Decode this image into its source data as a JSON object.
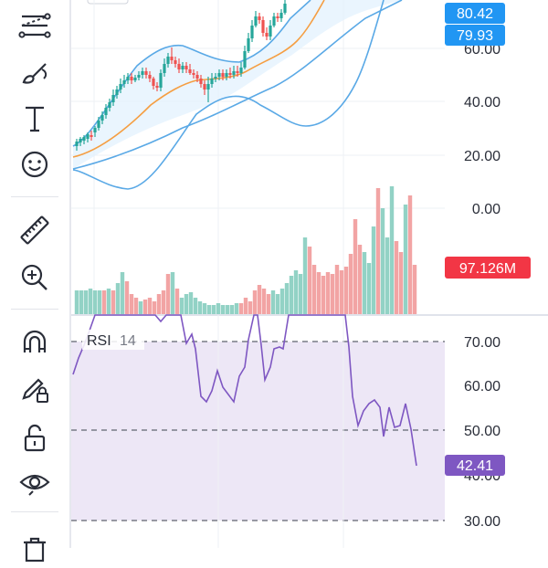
{
  "toolbar": {
    "tools": [
      {
        "name": "trendline-tool",
        "icon": "multi-line-icon"
      },
      {
        "name": "brush-tool",
        "icon": "brush-icon"
      },
      {
        "name": "text-tool",
        "icon": "text-T-icon"
      },
      {
        "name": "emoji-tool",
        "icon": "smiley-icon"
      },
      {
        "name": "measure-tool",
        "icon": "ruler-icon"
      },
      {
        "name": "zoom-tool",
        "icon": "zoom-in-icon"
      },
      {
        "name": "magnet-tool",
        "icon": "magnet-icon"
      },
      {
        "name": "lock-drawing-tool",
        "icon": "pencil-lock-icon"
      },
      {
        "name": "lock-all-tool",
        "icon": "unlock-icon"
      },
      {
        "name": "hide-tool",
        "icon": "eye-icon"
      },
      {
        "name": "remove-tool",
        "icon": "trash-icon"
      }
    ]
  },
  "price_axis": {
    "labels": [
      "60.00",
      "40.00",
      "20.00",
      "0.00"
    ],
    "tags": [
      {
        "text": "80.42",
        "color": "#2196f3"
      },
      {
        "text": "79.93",
        "color": "#2196f3"
      },
      {
        "text": "97.126M",
        "color": "#f23645"
      }
    ]
  },
  "rsi_panel": {
    "indicator_name": "RSI",
    "period": "14",
    "axis_labels": [
      "70.00",
      "60.00",
      "50.00",
      "40.00",
      "30.00"
    ],
    "current_value": "42.41",
    "current_color": "#7e57c2"
  },
  "colors": {
    "up": "#26a69a",
    "down": "#ef5350",
    "volume_up": "#92d2c5",
    "volume_down": "#f2a4a4",
    "bollinger_band": "#5aa9e6",
    "ma": "#f59e42",
    "rsi_line": "#7e57c2",
    "rsi_fill": "#ede7f6"
  }
}
